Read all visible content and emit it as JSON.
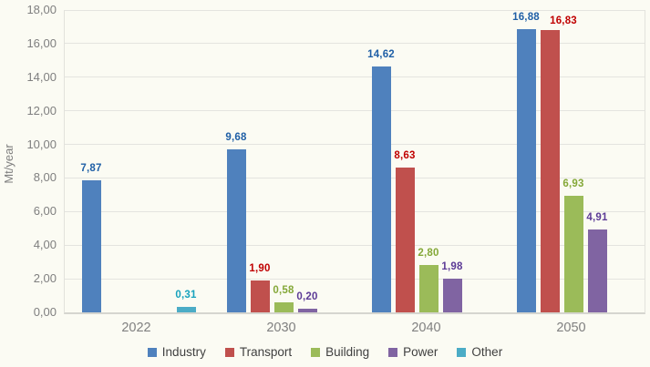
{
  "chart_data": {
    "type": "bar",
    "title": "",
    "xlabel": "",
    "ylabel": "Mt/year",
    "categories": [
      "2022",
      "2030",
      "2040",
      "2050"
    ],
    "series": [
      {
        "name": "Industry",
        "color": "#4F81BD",
        "label_color": "#1F5FA6",
        "values": [
          7.87,
          9.68,
          14.62,
          16.88
        ]
      },
      {
        "name": "Transport",
        "color": "#C0504D",
        "label_color": "#C00000",
        "values": [
          null,
          1.9,
          8.63,
          16.83
        ],
        "label_dx": [
          0,
          0,
          0,
          15
        ],
        "label_dy": [
          0,
          0,
          0,
          3
        ]
      },
      {
        "name": "Building",
        "color": "#9BBB59",
        "label_color": "#84A838",
        "values": [
          null,
          0.58,
          2.8,
          6.93
        ]
      },
      {
        "name": "Power",
        "color": "#8064A2",
        "label_color": "#5C3A96",
        "values": [
          null,
          0.2,
          1.98,
          4.91
        ]
      },
      {
        "name": "Other",
        "color": "#4BACC6",
        "label_color": "#17A2BD",
        "values": [
          0.31,
          null,
          null,
          null
        ]
      }
    ],
    "ylim": [
      0,
      18
    ],
    "ytick_step": 2,
    "decimal_separator": ",",
    "grid": "horizontal",
    "legend_position": "bottom"
  },
  "colors": {
    "background": "#FBFBF3",
    "gridline": "#E4E4DF",
    "plot_border": "#E2E2DC",
    "axis_line": "#D5D5CF",
    "tick_label": "#7F7F7F",
    "legend_text": "#404040"
  }
}
